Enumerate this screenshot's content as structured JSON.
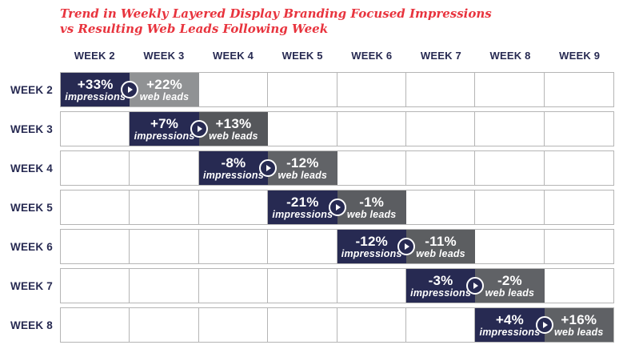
{
  "title": {
    "line1": "Trend in Weekly Layered Display Branding Focused Impressions",
    "line2": "vs Resulting Web Leads Following Week"
  },
  "colors": {
    "title_red": "#E8343E",
    "navy": "#272A52",
    "grid_border": "#B5B5B5",
    "header_text": "#272A52",
    "cell_text": "#FFFFFF"
  },
  "icon": "play-circle-icon",
  "chart_data": {
    "type": "table",
    "title": "Trend in Weekly Layered Display Branding Focused Impressions vs Resulting Web Leads Following Week",
    "columns": [
      "WEEK 2",
      "WEEK 3",
      "WEEK 4",
      "WEEK 5",
      "WEEK 6",
      "WEEK 7",
      "WEEK 8",
      "WEEK 9"
    ],
    "row_caption_impressions": "impressions",
    "row_caption_web_leads": "web leads",
    "rows": [
      {
        "label": "WEEK 2",
        "impressions_week": "WEEK 2",
        "impressions": "+33%",
        "web_leads_week": "WEEK 3",
        "web_leads": "+22%",
        "web_leads_color": "#909294"
      },
      {
        "label": "WEEK 3",
        "impressions_week": "WEEK 3",
        "impressions": "+7%",
        "web_leads_week": "WEEK 4",
        "web_leads": "+13%",
        "web_leads_color": "#55575B"
      },
      {
        "label": "WEEK 4",
        "impressions_week": "WEEK 4",
        "impressions": "-8%",
        "web_leads_week": "WEEK 5",
        "web_leads": "-12%",
        "web_leads_color": "#616367"
      },
      {
        "label": "WEEK 5",
        "impressions_week": "WEEK 5",
        "impressions": "-21%",
        "web_leads_week": "WEEK 6",
        "web_leads": "-1%",
        "web_leads_color": "#5B5D61"
      },
      {
        "label": "WEEK 6",
        "impressions_week": "WEEK 6",
        "impressions": "-12%",
        "web_leads_week": "WEEK 7",
        "web_leads": "-11%",
        "web_leads_color": "#5C5E61"
      },
      {
        "label": "WEEK 7",
        "impressions_week": "WEEK 7",
        "impressions": "-3%",
        "web_leads_week": "WEEK 8",
        "web_leads": "-2%",
        "web_leads_color": "#606266"
      },
      {
        "label": "WEEK 8",
        "impressions_week": "WEEK 8",
        "impressions": "+4%",
        "web_leads_week": "WEEK 9",
        "web_leads": "+16%",
        "web_leads_color": "#5F6165"
      }
    ]
  }
}
